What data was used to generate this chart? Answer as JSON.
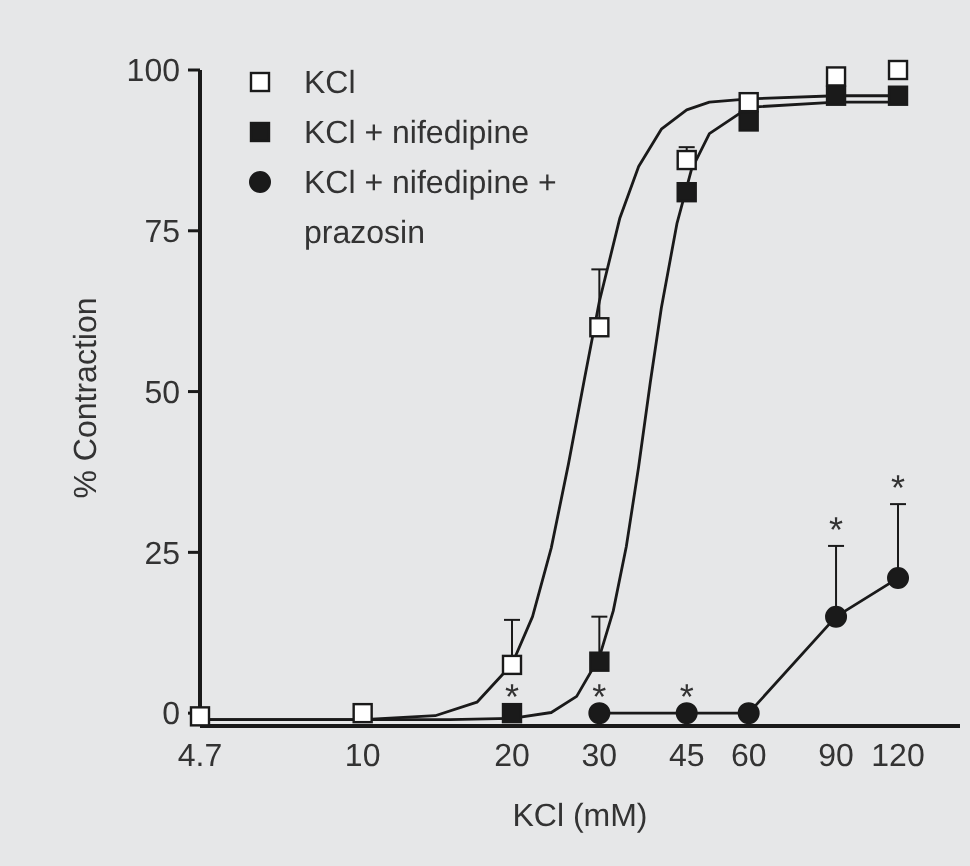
{
  "chart_data": {
    "type": "scatter",
    "xlabel": "KCl (mM)",
    "ylabel": "% Contraction",
    "log": "x",
    "legend": "top left",
    "xlim": [
      4.7,
      160
    ],
    "ylim": [
      -2,
      100
    ],
    "xticks": [
      4.7,
      10,
      20,
      30,
      45,
      60,
      90,
      120
    ],
    "yticks": [
      0,
      25,
      50,
      75,
      100
    ],
    "x": [
      4.7,
      10,
      20,
      30,
      45,
      60,
      90,
      120
    ],
    "series": [
      {
        "type": "line",
        "color": "#1a1a1a",
        "marker": "none",
        "x": [
          4.7,
          10,
          14,
          17,
          20,
          22,
          24,
          26,
          28,
          30,
          33,
          36,
          40,
          45,
          50,
          60,
          90,
          120
        ],
        "values": [
          -1,
          -1,
          -0.4,
          1.7,
          7.6,
          15,
          25.7,
          38.8,
          52,
          64,
          77,
          85,
          90.8,
          93.8,
          95,
          95.5,
          96,
          96
        ]
      },
      {
        "type": "line",
        "color": "#1a1a1a",
        "marker": "none",
        "x": [
          4.7,
          10,
          15,
          20,
          24,
          27,
          30,
          32,
          34,
          36,
          38,
          40,
          43,
          46,
          50,
          60,
          90,
          120
        ],
        "values": [
          -1,
          -1,
          -1,
          -0.8,
          0.1,
          2.6,
          8.7,
          15.9,
          25.9,
          38.3,
          51.4,
          63,
          76.1,
          84.5,
          90.1,
          94.2,
          95,
          95
        ]
      },
      {
        "type": "line",
        "name": "KCl + nifedipine + prazosin",
        "color": "#1a1a1a",
        "marker": "circle",
        "values": [
          null,
          null,
          null,
          0,
          0,
          0,
          15,
          21
        ],
        "errors": [
          null,
          null,
          null,
          null,
          null,
          null,
          [
            15,
            26
          ],
          [
            21,
            32.5
          ]
        ]
      },
      {
        "type": "scatter",
        "name": "KCl + nifedipine",
        "color": "#1a1a1a",
        "marker": "square",
        "values": [
          null,
          null,
          0,
          8,
          81,
          92,
          96,
          96
        ],
        "errors": [
          null,
          null,
          null,
          [
            8,
            15
          ],
          null,
          null,
          null,
          null
        ]
      },
      {
        "type": "scatter",
        "name": "KCl",
        "color": "#ffffff",
        "marker": "square",
        "values": [
          -0.5,
          0,
          7.5,
          60,
          86,
          95,
          99,
          100
        ],
        "errors": [
          null,
          null,
          [
            7.5,
            14.5
          ],
          [
            60,
            69
          ],
          [
            86,
            88
          ],
          null,
          null,
          null
        ]
      }
    ],
    "annotations": [
      {
        "text": "*",
        "x": 20,
        "y": 0
      },
      {
        "text": "*",
        "x": 30,
        "y": 0
      },
      {
        "text": "*",
        "x": 45,
        "y": 0
      },
      {
        "text": "*",
        "x": 90,
        "y": 26
      },
      {
        "text": "*",
        "x": 120,
        "y": 32.5
      }
    ]
  }
}
